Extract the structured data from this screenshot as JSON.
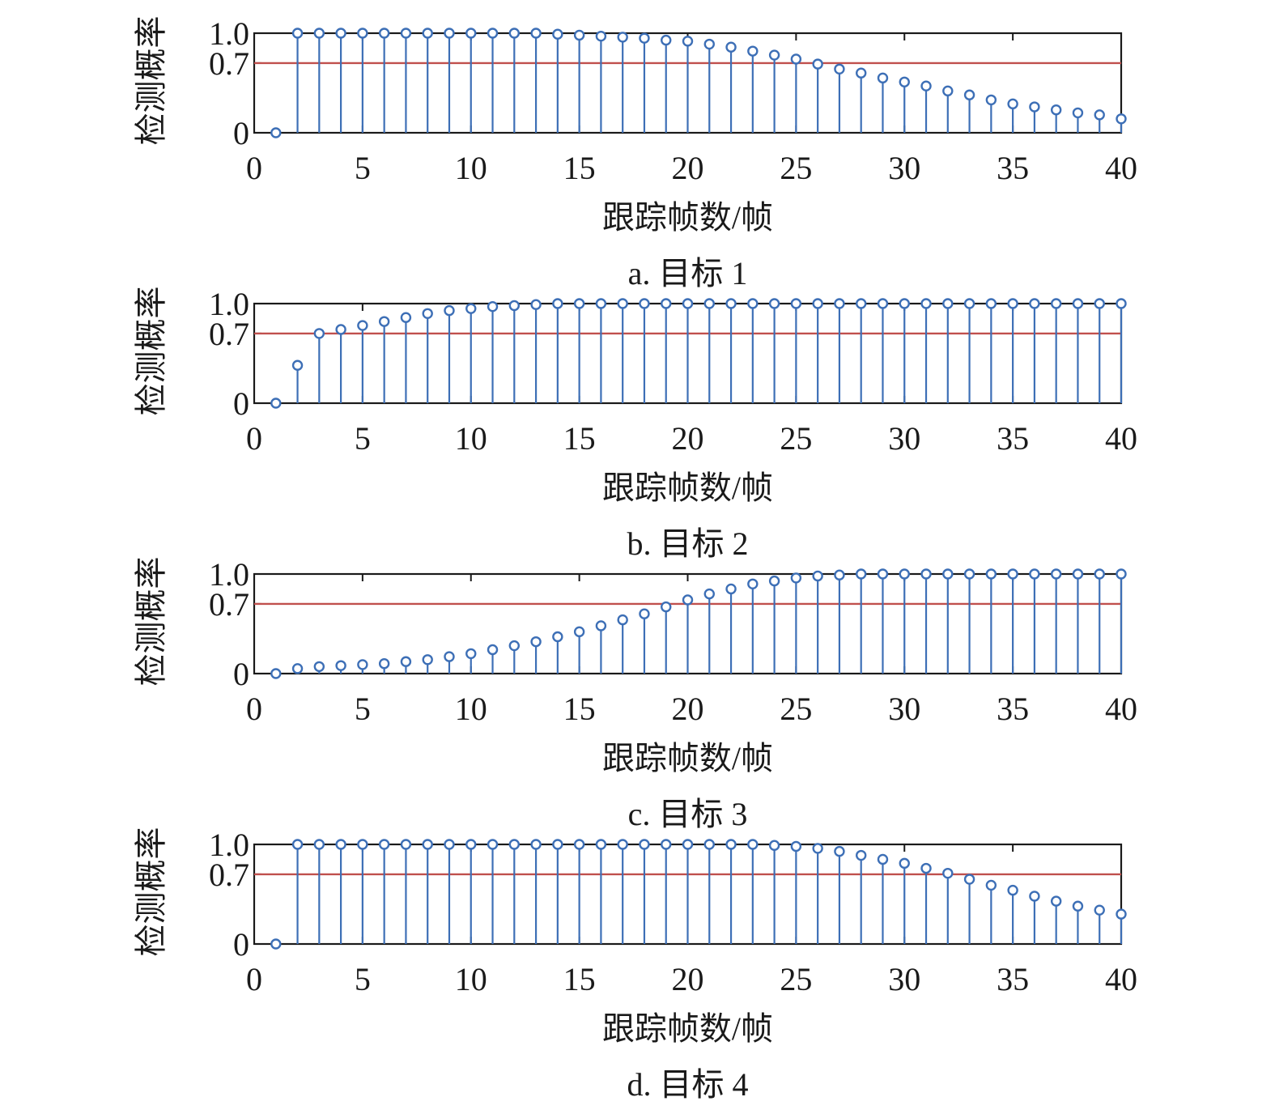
{
  "chart_data": [
    {
      "type": "stem",
      "caption": "a. 目标 1",
      "xlabel": "跟踪帧数/帧",
      "ylabel": "检测概率",
      "xlim": [
        0,
        40
      ],
      "ylim": [
        0,
        1.0
      ],
      "xticks": [
        "0",
        "5",
        "10",
        "15",
        "20",
        "25",
        "30",
        "35",
        "40"
      ],
      "yticks": [
        "0",
        "0.7",
        "1.0"
      ],
      "threshold": 0.7,
      "x": [
        1,
        2,
        3,
        4,
        5,
        6,
        7,
        8,
        9,
        10,
        11,
        12,
        13,
        14,
        15,
        16,
        17,
        18,
        19,
        20,
        21,
        22,
        23,
        24,
        25,
        26,
        27,
        28,
        29,
        30,
        31,
        32,
        33,
        34,
        35,
        36,
        37,
        38,
        39,
        40
      ],
      "values": [
        0,
        1.0,
        1.0,
        1.0,
        1.0,
        1.0,
        1.0,
        1.0,
        1.0,
        1.0,
        1.0,
        1.0,
        1.0,
        0.99,
        0.98,
        0.97,
        0.96,
        0.95,
        0.93,
        0.92,
        0.89,
        0.86,
        0.82,
        0.78,
        0.74,
        0.69,
        0.64,
        0.6,
        0.55,
        0.51,
        0.47,
        0.42,
        0.38,
        0.33,
        0.29,
        0.26,
        0.23,
        0.2,
        0.18,
        0.14
      ]
    },
    {
      "type": "stem",
      "caption": "b. 目标 2",
      "xlabel": "跟踪帧数/帧",
      "ylabel": "检测概率",
      "xlim": [
        0,
        40
      ],
      "ylim": [
        0,
        1.0
      ],
      "xticks": [
        "0",
        "5",
        "10",
        "15",
        "20",
        "25",
        "30",
        "35",
        "40"
      ],
      "yticks": [
        "0",
        "0.7",
        "1.0"
      ],
      "threshold": 0.7,
      "x": [
        1,
        2,
        3,
        4,
        5,
        6,
        7,
        8,
        9,
        10,
        11,
        12,
        13,
        14,
        15,
        16,
        17,
        18,
        19,
        20,
        21,
        22,
        23,
        24,
        25,
        26,
        27,
        28,
        29,
        30,
        31,
        32,
        33,
        34,
        35,
        36,
        37,
        38,
        39,
        40
      ],
      "values": [
        0,
        0.38,
        0.7,
        0.74,
        0.78,
        0.82,
        0.86,
        0.9,
        0.93,
        0.95,
        0.97,
        0.98,
        0.99,
        1.0,
        1.0,
        1.0,
        1.0,
        1.0,
        1.0,
        1.0,
        1.0,
        1.0,
        1.0,
        1.0,
        1.0,
        1.0,
        1.0,
        1.0,
        1.0,
        1.0,
        1.0,
        1.0,
        1.0,
        1.0,
        1.0,
        1.0,
        1.0,
        1.0,
        1.0,
        1.0
      ]
    },
    {
      "type": "stem",
      "caption": "c. 目标 3",
      "xlabel": "跟踪帧数/帧",
      "ylabel": "检测概率",
      "xlim": [
        0,
        40
      ],
      "ylim": [
        0,
        1.0
      ],
      "xticks": [
        "0",
        "5",
        "10",
        "15",
        "20",
        "25",
        "30",
        "35",
        "40"
      ],
      "yticks": [
        "0",
        "0.7",
        "1.0"
      ],
      "threshold": 0.7,
      "x": [
        1,
        2,
        3,
        4,
        5,
        6,
        7,
        8,
        9,
        10,
        11,
        12,
        13,
        14,
        15,
        16,
        17,
        18,
        19,
        20,
        21,
        22,
        23,
        24,
        25,
        26,
        27,
        28,
        29,
        30,
        31,
        32,
        33,
        34,
        35,
        36,
        37,
        38,
        39,
        40
      ],
      "values": [
        0,
        0.05,
        0.07,
        0.08,
        0.09,
        0.1,
        0.12,
        0.14,
        0.17,
        0.2,
        0.24,
        0.28,
        0.32,
        0.37,
        0.42,
        0.48,
        0.54,
        0.6,
        0.67,
        0.74,
        0.8,
        0.85,
        0.9,
        0.93,
        0.96,
        0.98,
        0.99,
        1.0,
        1.0,
        1.0,
        1.0,
        1.0,
        1.0,
        1.0,
        1.0,
        1.0,
        1.0,
        1.0,
        1.0,
        1.0
      ]
    },
    {
      "type": "stem",
      "caption": "d. 目标 4",
      "xlabel": "跟踪帧数/帧",
      "ylabel": "检测概率",
      "xlim": [
        0,
        40
      ],
      "ylim": [
        0,
        1.0
      ],
      "xticks": [
        "0",
        "5",
        "10",
        "15",
        "20",
        "25",
        "30",
        "35",
        "40"
      ],
      "yticks": [
        "0",
        "0.7",
        "1.0"
      ],
      "threshold": 0.7,
      "x": [
        1,
        2,
        3,
        4,
        5,
        6,
        7,
        8,
        9,
        10,
        11,
        12,
        13,
        14,
        15,
        16,
        17,
        18,
        19,
        20,
        21,
        22,
        23,
        24,
        25,
        26,
        27,
        28,
        29,
        30,
        31,
        32,
        33,
        34,
        35,
        36,
        37,
        38,
        39,
        40
      ],
      "values": [
        0,
        1.0,
        1.0,
        1.0,
        1.0,
        1.0,
        1.0,
        1.0,
        1.0,
        1.0,
        1.0,
        1.0,
        1.0,
        1.0,
        1.0,
        1.0,
        1.0,
        1.0,
        1.0,
        1.0,
        1.0,
        1.0,
        1.0,
        0.99,
        0.98,
        0.96,
        0.93,
        0.89,
        0.85,
        0.81,
        0.76,
        0.71,
        0.65,
        0.59,
        0.54,
        0.48,
        0.43,
        0.38,
        0.34,
        0.3
      ]
    }
  ],
  "colors": {
    "stem": "#3d6fb6",
    "threshold": "#c0504d",
    "axes": "#1a1a1a"
  }
}
